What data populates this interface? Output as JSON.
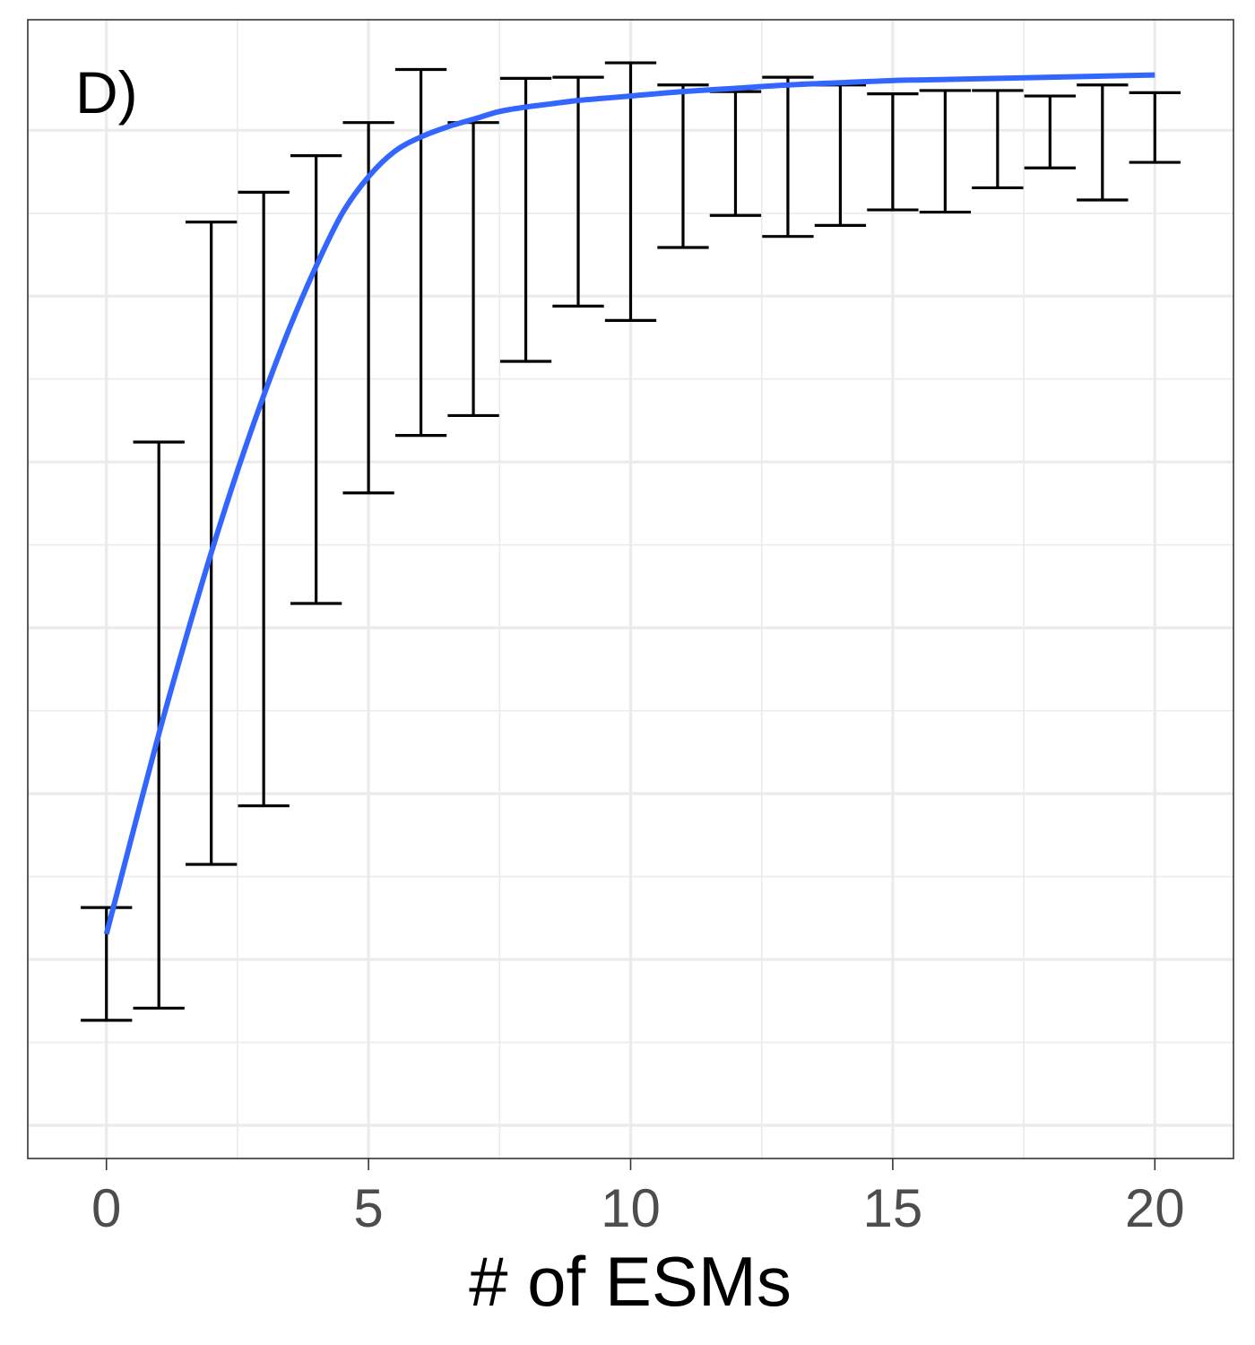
{
  "chart_data": {
    "type": "line",
    "panel_label": "D)",
    "xlabel": "# of ESMs",
    "ylabel": "",
    "x_ticks": [
      0,
      5,
      10,
      15,
      20
    ],
    "xlim": [
      -1.5,
      21.5
    ],
    "ylim": [
      -0.03,
      1.0
    ],
    "y_gridlines": [
      0.0,
      0.15,
      0.3,
      0.45,
      0.6,
      0.75,
      0.9
    ],
    "y_tick_labels_shown": false,
    "grid": true,
    "legend": "none",
    "colors": {
      "line": "#3366ff",
      "errorbar": "#000000",
      "grid": "#ebebeb",
      "border": "#333333"
    },
    "series": [
      {
        "kind": "errorbar",
        "x": [
          0,
          1,
          2,
          3,
          4,
          5,
          6,
          7,
          8,
          9,
          10,
          11,
          12,
          13,
          14,
          15,
          16,
          17,
          18,
          19,
          20
        ],
        "lower": [
          0.095,
          0.106,
          0.236,
          0.289,
          0.472,
          0.572,
          0.624,
          0.642,
          0.691,
          0.741,
          0.728,
          0.794,
          0.823,
          0.804,
          0.814,
          0.828,
          0.826,
          0.848,
          0.866,
          0.837,
          0.871
        ],
        "upper": [
          0.197,
          0.618,
          0.817,
          0.844,
          0.877,
          0.907,
          0.955,
          0.907,
          0.947,
          0.948,
          0.961,
          0.941,
          0.935,
          0.948,
          0.941,
          0.933,
          0.936,
          0.936,
          0.931,
          0.941,
          0.934
        ]
      },
      {
        "kind": "smooth",
        "x": [
          0,
          0.5,
          1,
          1.5,
          2,
          2.5,
          3,
          3.5,
          4,
          4.5,
          5,
          5.5,
          6,
          6.5,
          7,
          7.5,
          8,
          8.5,
          9,
          9.5,
          10,
          11,
          12,
          13,
          14,
          15,
          16,
          17,
          18,
          19,
          20
        ],
        "y": [
          0.173,
          0.264,
          0.354,
          0.438,
          0.518,
          0.592,
          0.66,
          0.722,
          0.777,
          0.825,
          0.858,
          0.881,
          0.894,
          0.903,
          0.91,
          0.917,
          0.921,
          0.924,
          0.927,
          0.929,
          0.931,
          0.935,
          0.938,
          0.941,
          0.943,
          0.945,
          0.946,
          0.947,
          0.948,
          0.949,
          0.95
        ]
      }
    ]
  }
}
